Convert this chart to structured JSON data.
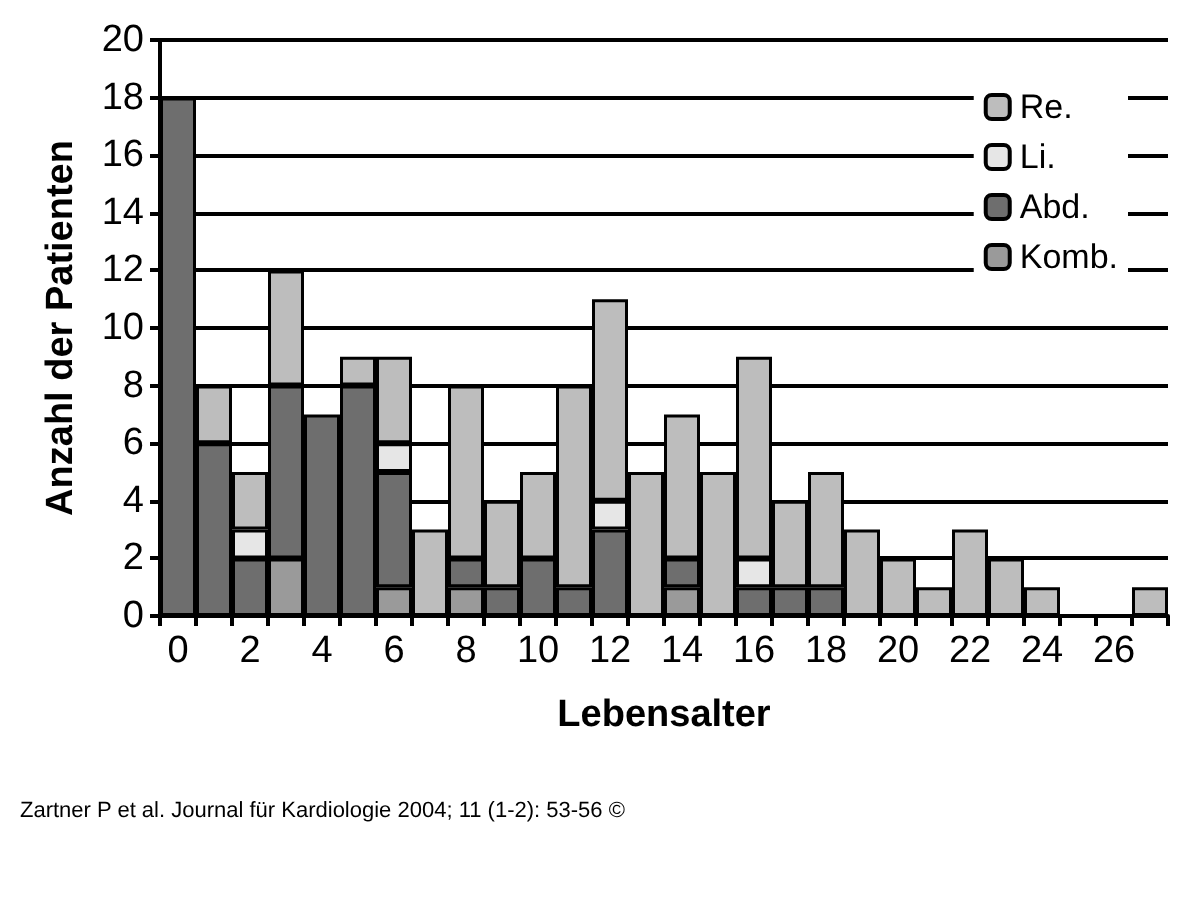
{
  "chart_data": {
    "type": "bar",
    "stacked": true,
    "xlabel": "Lebensalter",
    "ylabel": "Anzahl der Patienten",
    "categories": [
      "0",
      null,
      "2",
      null,
      "4",
      null,
      "6",
      null,
      "8",
      null,
      "10",
      null,
      "12",
      null,
      "14",
      null,
      "16",
      null,
      "18",
      null,
      "20",
      null,
      "22",
      null,
      "24",
      null,
      "26",
      null
    ],
    "series": [
      {
        "name": "Komb.",
        "color": "#9a9a9a",
        "values": [
          0,
          0,
          0,
          2,
          0,
          0,
          1,
          0,
          1,
          0,
          0,
          0,
          0,
          0,
          1,
          0,
          0,
          0,
          0,
          0,
          0,
          0,
          0,
          0,
          0,
          0,
          0,
          0
        ]
      },
      {
        "name": "Abd.",
        "color": "#6e6e6e",
        "values": [
          18,
          6,
          2,
          6,
          7,
          8,
          4,
          0,
          1,
          1,
          2,
          1,
          3,
          0,
          1,
          0,
          1,
          1,
          1,
          0,
          0,
          0,
          0,
          0,
          0,
          0,
          0,
          0
        ]
      },
      {
        "name": "Li.",
        "color": "#e6e6e6",
        "values": [
          0,
          0,
          1,
          0,
          0,
          0,
          1,
          0,
          0,
          0,
          0,
          0,
          1,
          0,
          0,
          0,
          1,
          0,
          0,
          0,
          0,
          0,
          0,
          0,
          0,
          0,
          0,
          0
        ]
      },
      {
        "name": "Re.",
        "color": "#bdbdbd",
        "values": [
          0,
          2,
          2,
          4,
          0,
          1,
          3,
          3,
          6,
          3,
          3,
          7,
          7,
          5,
          5,
          5,
          7,
          3,
          4,
          3,
          2,
          1,
          3,
          2,
          1,
          0,
          0,
          1
        ]
      }
    ],
    "ylim": [
      0,
      20
    ],
    "yticks": [
      0,
      2,
      4,
      6,
      8,
      10,
      12,
      14,
      16,
      18,
      20
    ],
    "grid": "y",
    "legend": "top right",
    "annotations": [
      "Zartner P et al. Journal für Kardiologie 2004; 11 (1-2): 53-56 ©"
    ]
  }
}
